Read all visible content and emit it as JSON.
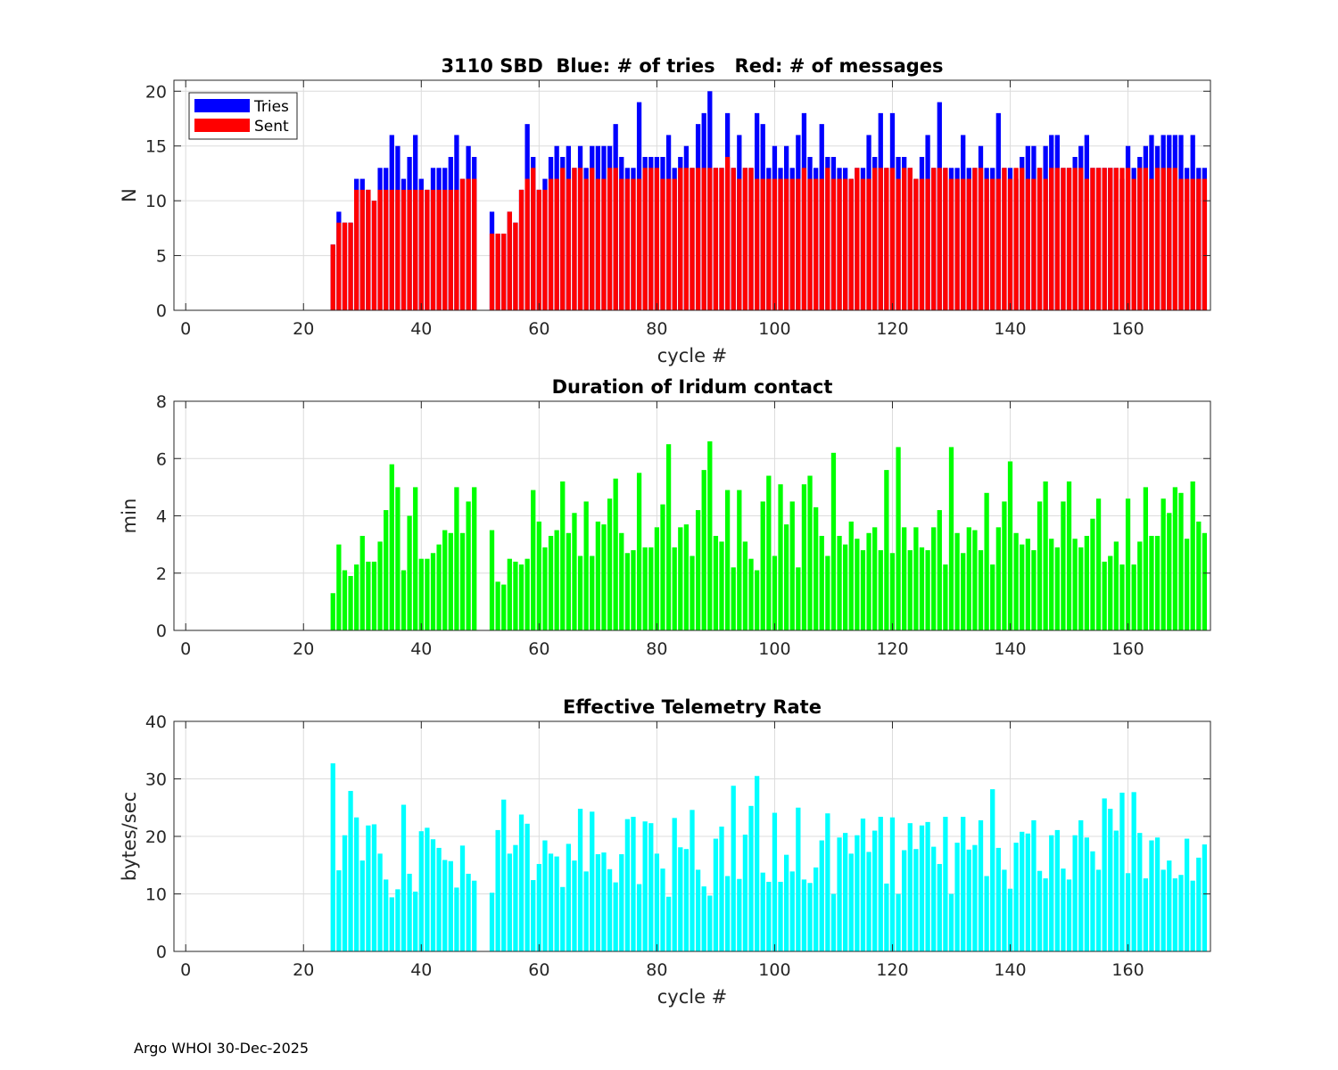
{
  "footer": "Argo WHOI 30-Dec-2025",
  "colors": {
    "tries": "#0000ff",
    "sent": "#ff0000",
    "duration": "#00ff00",
    "rate": "#00ffff",
    "grid": "#dcdcdc",
    "axis": "#262626"
  },
  "chart_data": [
    {
      "type": "bar",
      "title": "3110 SBD  Blue: # of tries   Red: # of messages",
      "xlabel": "cycle #",
      "ylabel": "N",
      "xlim": [
        -2,
        174
      ],
      "ylim": [
        0,
        21
      ],
      "xticks": [
        0,
        20,
        40,
        60,
        80,
        100,
        120,
        140,
        160
      ],
      "yticks": [
        0,
        5,
        10,
        15,
        20
      ],
      "grid": true,
      "legend": {
        "position": "top-left",
        "entries": [
          "Tries",
          "Sent"
        ]
      },
      "x": [
        25,
        26,
        27,
        28,
        29,
        30,
        31,
        32,
        33,
        34,
        35,
        36,
        37,
        38,
        39,
        40,
        41,
        42,
        43,
        44,
        45,
        46,
        47,
        48,
        49,
        52,
        53,
        54,
        55,
        56,
        57,
        58,
        59,
        60,
        61,
        62,
        63,
        64,
        65,
        66,
        67,
        68,
        69,
        70,
        71,
        72,
        73,
        74,
        75,
        76,
        77,
        78,
        79,
        80,
        81,
        82,
        83,
        84,
        85,
        86,
        87,
        88,
        89,
        90,
        91,
        92,
        93,
        94,
        95,
        96,
        97,
        98,
        99,
        100,
        101,
        102,
        103,
        104,
        105,
        106,
        107,
        108,
        109,
        110,
        111,
        112,
        113,
        114,
        115,
        116,
        117,
        118,
        119,
        120,
        121,
        122,
        123,
        124,
        125,
        126,
        127,
        128,
        129,
        130,
        131,
        132,
        133,
        134,
        135,
        136,
        137,
        138,
        139,
        140,
        141,
        142,
        143,
        144,
        145,
        146,
        147,
        148,
        149,
        150,
        151,
        152,
        153,
        154,
        155,
        156,
        157,
        158,
        159,
        160,
        161,
        162,
        163,
        164,
        165,
        166,
        167,
        168,
        169,
        170,
        171,
        172,
        173
      ],
      "series": [
        {
          "name": "Tries",
          "values": [
            6,
            9,
            8,
            8,
            12,
            12,
            11,
            10,
            13,
            13,
            16,
            15,
            12,
            14,
            16,
            12,
            11,
            13,
            13,
            13,
            14,
            16,
            12,
            15,
            14,
            9,
            7,
            7,
            9,
            8,
            11,
            17,
            14,
            11,
            12,
            14,
            15,
            14,
            15,
            13,
            15,
            13,
            15,
            15,
            15,
            15,
            17,
            14,
            13,
            13,
            19,
            14,
            14,
            14,
            14,
            16,
            13,
            14,
            15,
            13,
            17,
            18,
            20,
            13,
            13,
            18,
            13,
            16,
            13,
            13,
            18,
            17,
            13,
            15,
            13,
            15,
            13,
            16,
            18,
            14,
            13,
            17,
            14,
            14,
            13,
            13,
            12,
            13,
            13,
            16,
            14,
            18,
            13,
            18,
            14,
            14,
            13,
            12,
            14,
            16,
            13,
            19,
            13,
            13,
            13,
            16,
            13,
            13,
            15,
            13,
            13,
            18,
            13,
            13,
            12,
            14,
            15,
            15,
            13,
            15,
            16,
            16,
            13,
            13,
            14,
            15,
            16,
            13,
            13,
            13,
            13,
            13,
            12,
            15,
            13,
            14,
            15,
            16,
            15,
            16,
            16,
            16,
            16,
            13,
            16,
            13,
            13
          ]
        },
        {
          "name": "Sent",
          "values": [
            6,
            8,
            8,
            8,
            11,
            11,
            11,
            10,
            11,
            11,
            11,
            11,
            11,
            11,
            11,
            11,
            11,
            11,
            11,
            11,
            11,
            11,
            12,
            12,
            12,
            7,
            7,
            7,
            9,
            8,
            11,
            12,
            13,
            11,
            11,
            12,
            12,
            13,
            12,
            13,
            13,
            12,
            13,
            12,
            12,
            13,
            13,
            12,
            12,
            12,
            12,
            13,
            13,
            13,
            12,
            12,
            12,
            13,
            13,
            13,
            13,
            13,
            13,
            13,
            13,
            14,
            13,
            12,
            13,
            13,
            12,
            12,
            12,
            12,
            12,
            12,
            12,
            12,
            13,
            12,
            12,
            12,
            13,
            12,
            12,
            12,
            12,
            13,
            12,
            12,
            13,
            13,
            13,
            13,
            12,
            13,
            13,
            12,
            12,
            12,
            13,
            13,
            13,
            12,
            12,
            12,
            12,
            13,
            13,
            12,
            12,
            12,
            13,
            12,
            13,
            13,
            12,
            12,
            13,
            12,
            13,
            13,
            13,
            13,
            13,
            13,
            12,
            13,
            13,
            13,
            13,
            13,
            13,
            13,
            12,
            13,
            13,
            12,
            13,
            13,
            13,
            13,
            12,
            12,
            12,
            12,
            12
          ]
        }
      ]
    },
    {
      "type": "bar",
      "title": "Duration of Iridum contact",
      "xlabel": "",
      "ylabel": "min",
      "xlim": [
        -2,
        174
      ],
      "ylim": [
        0,
        8
      ],
      "xticks": [
        0,
        20,
        40,
        60,
        80,
        100,
        120,
        140,
        160
      ],
      "yticks": [
        0,
        2,
        4,
        6,
        8
      ],
      "grid": true,
      "x": [
        25,
        26,
        27,
        28,
        29,
        30,
        31,
        32,
        33,
        34,
        35,
        36,
        37,
        38,
        39,
        40,
        41,
        42,
        43,
        44,
        45,
        46,
        47,
        48,
        49,
        52,
        53,
        54,
        55,
        56,
        57,
        58,
        59,
        60,
        61,
        62,
        63,
        64,
        65,
        66,
        67,
        68,
        69,
        70,
        71,
        72,
        73,
        74,
        75,
        76,
        77,
        78,
        79,
        80,
        81,
        82,
        83,
        84,
        85,
        86,
        87,
        88,
        89,
        90,
        91,
        92,
        93,
        94,
        95,
        96,
        97,
        98,
        99,
        100,
        101,
        102,
        103,
        104,
        105,
        106,
        107,
        108,
        109,
        110,
        111,
        112,
        113,
        114,
        115,
        116,
        117,
        118,
        119,
        120,
        121,
        122,
        123,
        124,
        125,
        126,
        127,
        128,
        129,
        130,
        131,
        132,
        133,
        134,
        135,
        136,
        137,
        138,
        139,
        140,
        141,
        142,
        143,
        144,
        145,
        146,
        147,
        148,
        149,
        150,
        151,
        152,
        153,
        154,
        155,
        156,
        157,
        158,
        159,
        160,
        161,
        162,
        163,
        164,
        165,
        166,
        167,
        168,
        169,
        170,
        171,
        172,
        173
      ],
      "values": [
        1.3,
        3.0,
        2.1,
        1.9,
        2.3,
        3.3,
        2.4,
        2.4,
        3.1,
        4.2,
        5.8,
        5.0,
        2.1,
        4.0,
        5.0,
        2.5,
        2.5,
        2.7,
        3.0,
        3.5,
        3.4,
        5.0,
        3.4,
        4.5,
        5.0,
        3.5,
        1.7,
        1.6,
        2.5,
        2.4,
        2.3,
        2.5,
        4.9,
        3.8,
        2.9,
        3.3,
        3.5,
        5.2,
        3.4,
        4.1,
        2.6,
        4.5,
        2.6,
        3.8,
        3.7,
        4.6,
        5.3,
        3.4,
        2.7,
        2.8,
        5.5,
        2.9,
        2.9,
        3.6,
        4.4,
        6.5,
        2.9,
        3.6,
        3.7,
        2.6,
        4.2,
        5.6,
        6.6,
        3.3,
        3.1,
        4.9,
        2.2,
        4.9,
        3.1,
        2.5,
        2.1,
        4.5,
        5.4,
        2.6,
        5.1,
        3.7,
        4.5,
        2.2,
        5.1,
        5.4,
        4.3,
        3.3,
        2.6,
        6.2,
        3.3,
        3.0,
        3.8,
        3.2,
        2.8,
        3.4,
        3.6,
        2.8,
        5.6,
        2.7,
        6.4,
        3.6,
        2.8,
        3.6,
        2.9,
        2.8,
        3.6,
        4.2,
        2.3,
        6.4,
        3.4,
        2.7,
        3.6,
        3.5,
        2.8,
        4.8,
        2.3,
        3.6,
        4.5,
        5.9,
        3.4,
        3.0,
        3.2,
        2.8,
        4.5,
        5.2,
        3.2,
        2.9,
        4.5,
        5.2,
        3.2,
        2.9,
        3.3,
        3.9,
        4.6,
        2.4,
        2.6,
        3.1,
        2.3,
        4.6,
        2.3,
        3.1,
        5.0,
        3.3,
        3.3,
        4.6,
        4.1,
        5.0,
        4.8,
        3.2,
        5.2,
        3.8,
        3.4
      ]
    },
    {
      "type": "bar",
      "title": "Effective Telemetry Rate",
      "xlabel": "cycle #",
      "ylabel": "bytes/sec",
      "xlim": [
        -2,
        174
      ],
      "ylim": [
        0,
        40
      ],
      "xticks": [
        0,
        20,
        40,
        60,
        80,
        100,
        120,
        140,
        160
      ],
      "yticks": [
        0,
        10,
        20,
        30,
        40
      ],
      "grid": true,
      "x": [
        25,
        26,
        27,
        28,
        29,
        30,
        31,
        32,
        33,
        34,
        35,
        36,
        37,
        38,
        39,
        40,
        41,
        42,
        43,
        44,
        45,
        46,
        47,
        48,
        49,
        52,
        53,
        54,
        55,
        56,
        57,
        58,
        59,
        60,
        61,
        62,
        63,
        64,
        65,
        66,
        67,
        68,
        69,
        70,
        71,
        72,
        73,
        74,
        75,
        76,
        77,
        78,
        79,
        80,
        81,
        82,
        83,
        84,
        85,
        86,
        87,
        88,
        89,
        90,
        91,
        92,
        93,
        94,
        95,
        96,
        97,
        98,
        99,
        100,
        101,
        102,
        103,
        104,
        105,
        106,
        107,
        108,
        109,
        110,
        111,
        112,
        113,
        114,
        115,
        116,
        117,
        118,
        119,
        120,
        121,
        122,
        123,
        124,
        125,
        126,
        127,
        128,
        129,
        130,
        131,
        132,
        133,
        134,
        135,
        136,
        137,
        138,
        139,
        140,
        141,
        142,
        143,
        144,
        145,
        146,
        147,
        148,
        149,
        150,
        151,
        152,
        153,
        154,
        155,
        156,
        157,
        158,
        159,
        160,
        161,
        162,
        163,
        164,
        165,
        166,
        167,
        168,
        169,
        170,
        171,
        172,
        173
      ],
      "values": [
        32.7,
        14.1,
        20.2,
        27.9,
        23.3,
        15.8,
        21.9,
        22.1,
        17.0,
        12.5,
        9.4,
        10.8,
        25.5,
        13.5,
        10.4,
        20.9,
        21.5,
        19.5,
        18.0,
        15.9,
        15.7,
        11.1,
        18.4,
        13.5,
        12.3,
        10.2,
        21.1,
        26.4,
        17.0,
        18.5,
        23.8,
        22.2,
        12.4,
        15.2,
        19.3,
        17.0,
        16.5,
        11.2,
        18.7,
        15.8,
        24.8,
        13.9,
        24.3,
        16.9,
        17.2,
        14.3,
        12.0,
        16.9,
        23.0,
        23.4,
        11.7,
        22.6,
        22.3,
        17.0,
        14.4,
        9.5,
        23.2,
        18.1,
        17.8,
        24.6,
        14.2,
        11.3,
        9.7,
        19.6,
        21.7,
        13.1,
        28.8,
        12.6,
        20.3,
        25.3,
        30.5,
        13.7,
        12.1,
        24.1,
        12.1,
        16.8,
        13.9,
        25.0,
        12.5,
        11.9,
        14.6,
        19.3,
        24.0,
        10.0,
        19.8,
        20.6,
        17.0,
        20.2,
        23.1,
        17.3,
        21.0,
        23.4,
        11.8,
        23.3,
        10.0,
        17.6,
        22.3,
        17.8,
        21.9,
        22.5,
        18.2,
        15.2,
        23.4,
        10.0,
        18.9,
        23.4,
        17.7,
        18.5,
        22.8,
        13.1,
        28.2,
        18.0,
        14.2,
        10.9,
        18.9,
        20.8,
        20.5,
        22.8,
        14.0,
        12.7,
        20.2,
        21.1,
        14.4,
        12.5,
        20.2,
        22.8,
        19.8,
        17.4,
        14.2,
        26.6,
        24.8,
        21.0,
        27.6,
        13.6,
        27.7,
        20.6,
        12.7,
        19.3,
        19.8,
        14.2,
        15.8,
        12.7,
        13.3,
        19.6,
        12.3,
        16.3,
        18.6
      ]
    }
  ]
}
